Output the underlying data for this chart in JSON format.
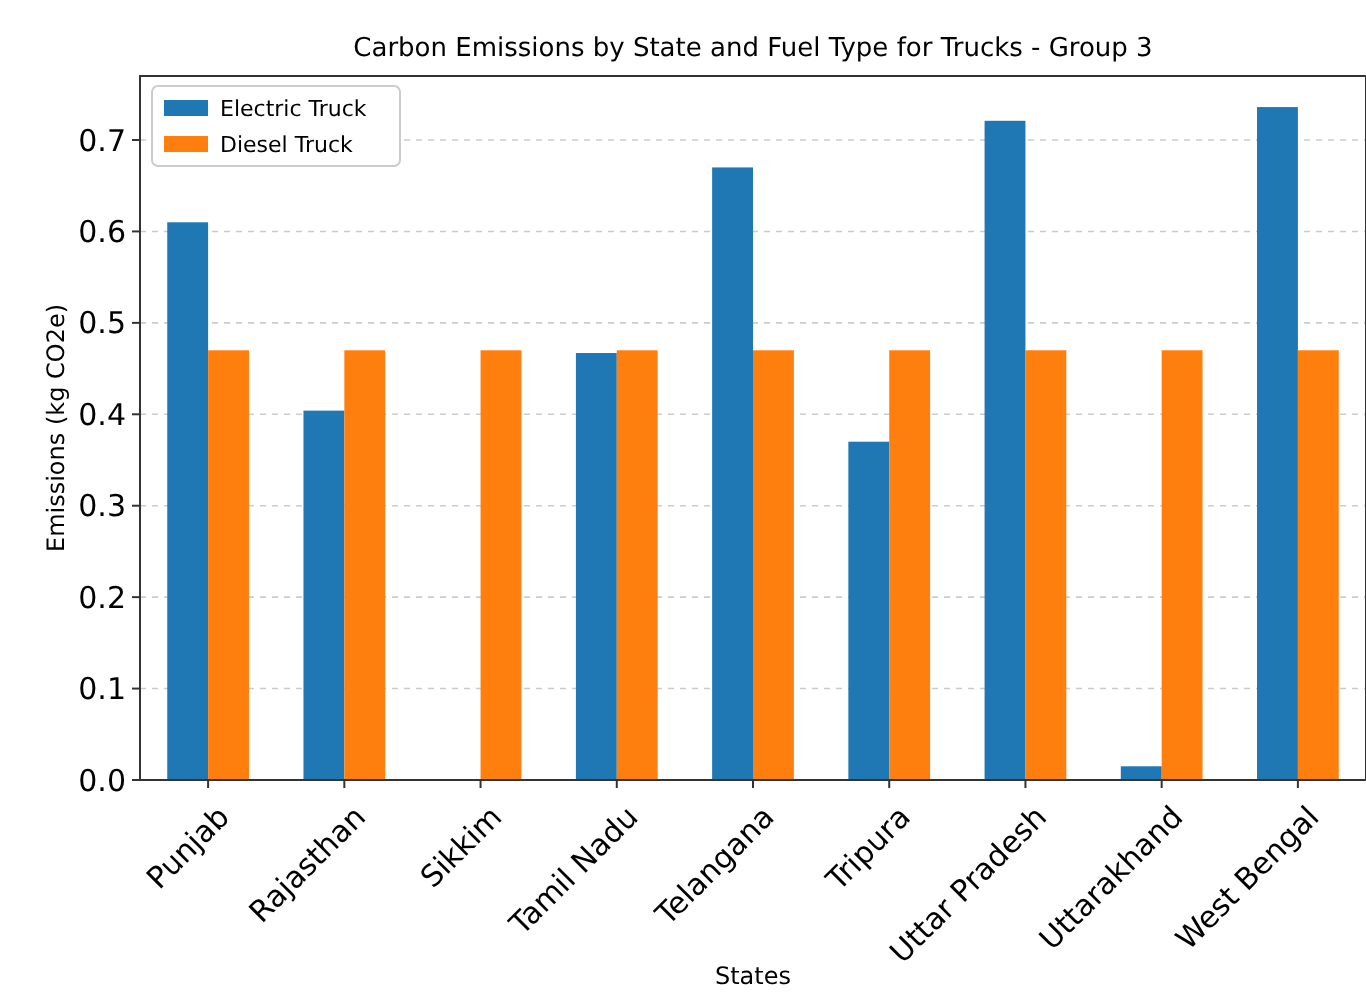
{
  "chart_data": {
    "type": "bar",
    "title": "Carbon Emissions by State and Fuel Type for Trucks - Group 3",
    "xlabel": "States",
    "ylabel": "Emissions (kg CO2e)",
    "categories": [
      "Punjab",
      "Rajasthan",
      "Sikkim",
      "Tamil Nadu",
      "Telangana",
      "Tripura",
      "Uttar Pradesh",
      "Uttarakhand",
      "West Bengal"
    ],
    "series": [
      {
        "name": "Electric Truck",
        "color": "#1f77b4",
        "values": [
          0.61,
          0.404,
          0,
          0.467,
          0.67,
          0.37,
          0.721,
          0.015,
          0.736
        ]
      },
      {
        "name": "Diesel Truck",
        "color": "#ff7f0e",
        "values": [
          0.47,
          0.47,
          0.47,
          0.47,
          0.47,
          0.47,
          0.47,
          0.47,
          0.47
        ]
      }
    ],
    "ylim": [
      0,
      0.77
    ],
    "yticks": [
      {
        "value": 0,
        "label": "0.0"
      },
      0.1,
      0.2,
      0.3,
      0.4,
      0.5,
      0.6,
      0.7
    ],
    "grid": "y",
    "legend": "top left"
  }
}
